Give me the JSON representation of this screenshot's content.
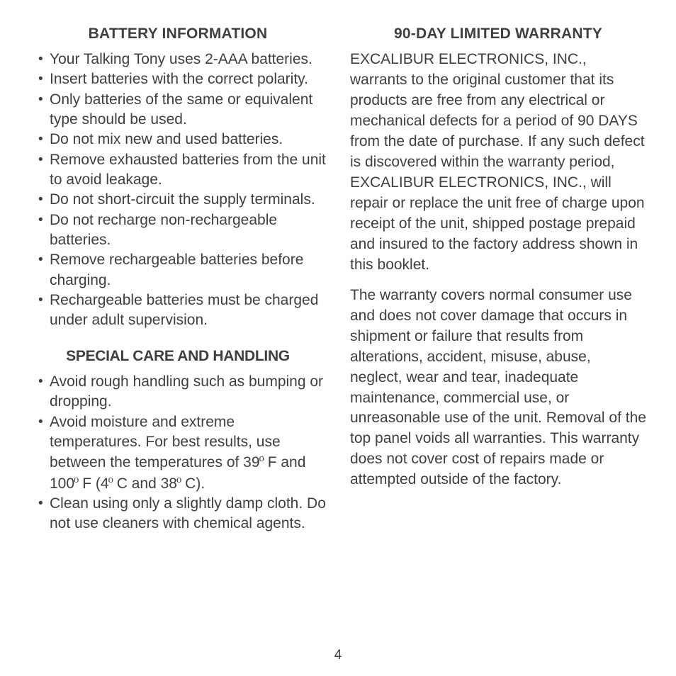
{
  "left": {
    "heading1": "BATTERY INFORMATION",
    "bullets1": [
      "Your Talking Tony uses 2-AAA batteries.",
      "Insert batteries with the correct polarity.",
      "Only batteries of the same or equivalent type should be used.",
      "Do not mix new and used batteries.",
      "Remove exhausted batteries from the unit to avoid leakage.",
      "Do not short-circuit the supply terminals.",
      "Do not recharge non-rechargeable batteries.",
      "Remove rechargeable batteries before charging.",
      "Rechargeable batteries must be charged under adult supervision."
    ],
    "heading2": "SPECIAL CARE AND HANDLING",
    "bullets2": [
      "Avoid rough handling such as bumping or dropping.",
      "Avoid moisture and extreme temperatures. For best results, use between the temperatures of 39° F and 100° F (4° C and 38° C).",
      "Clean using only a slightly damp cloth. Do not use cleaners with chemical agents."
    ]
  },
  "right": {
    "heading": "90-DAY LIMITED WARRANTY",
    "para1": "EXCALIBUR ELECTRONICS, INC., warrants to the original customer that its products are free from any electrical or mechanical defects for a period of 90 DAYS from the date of purchase. If any such defect is discovered within the warranty period, EXCALIBUR ELECTRONICS, INC., will repair or replace the unit free of charge upon receipt of the unit, shipped postage prepaid and insured to the factory address shown in this booklet.",
    "para2": "The warranty covers normal consumer use and does not cover damage that occurs in shipment or failure that results from alterations, accident, misuse, abuse, neglect, wear and tear, inadequate maintenance, commercial use, or unreasonable use of the unit. Removal of the top panel voids all warranties. This warranty does not cover cost of repairs made or attempted outside of the factory."
  },
  "page_number": "4",
  "colors": {
    "text": "#3f3f3f",
    "background": "#ffffff"
  },
  "typography": {
    "body_fontsize": 21,
    "heading_fontsize": 21,
    "font_family": "Arial"
  }
}
